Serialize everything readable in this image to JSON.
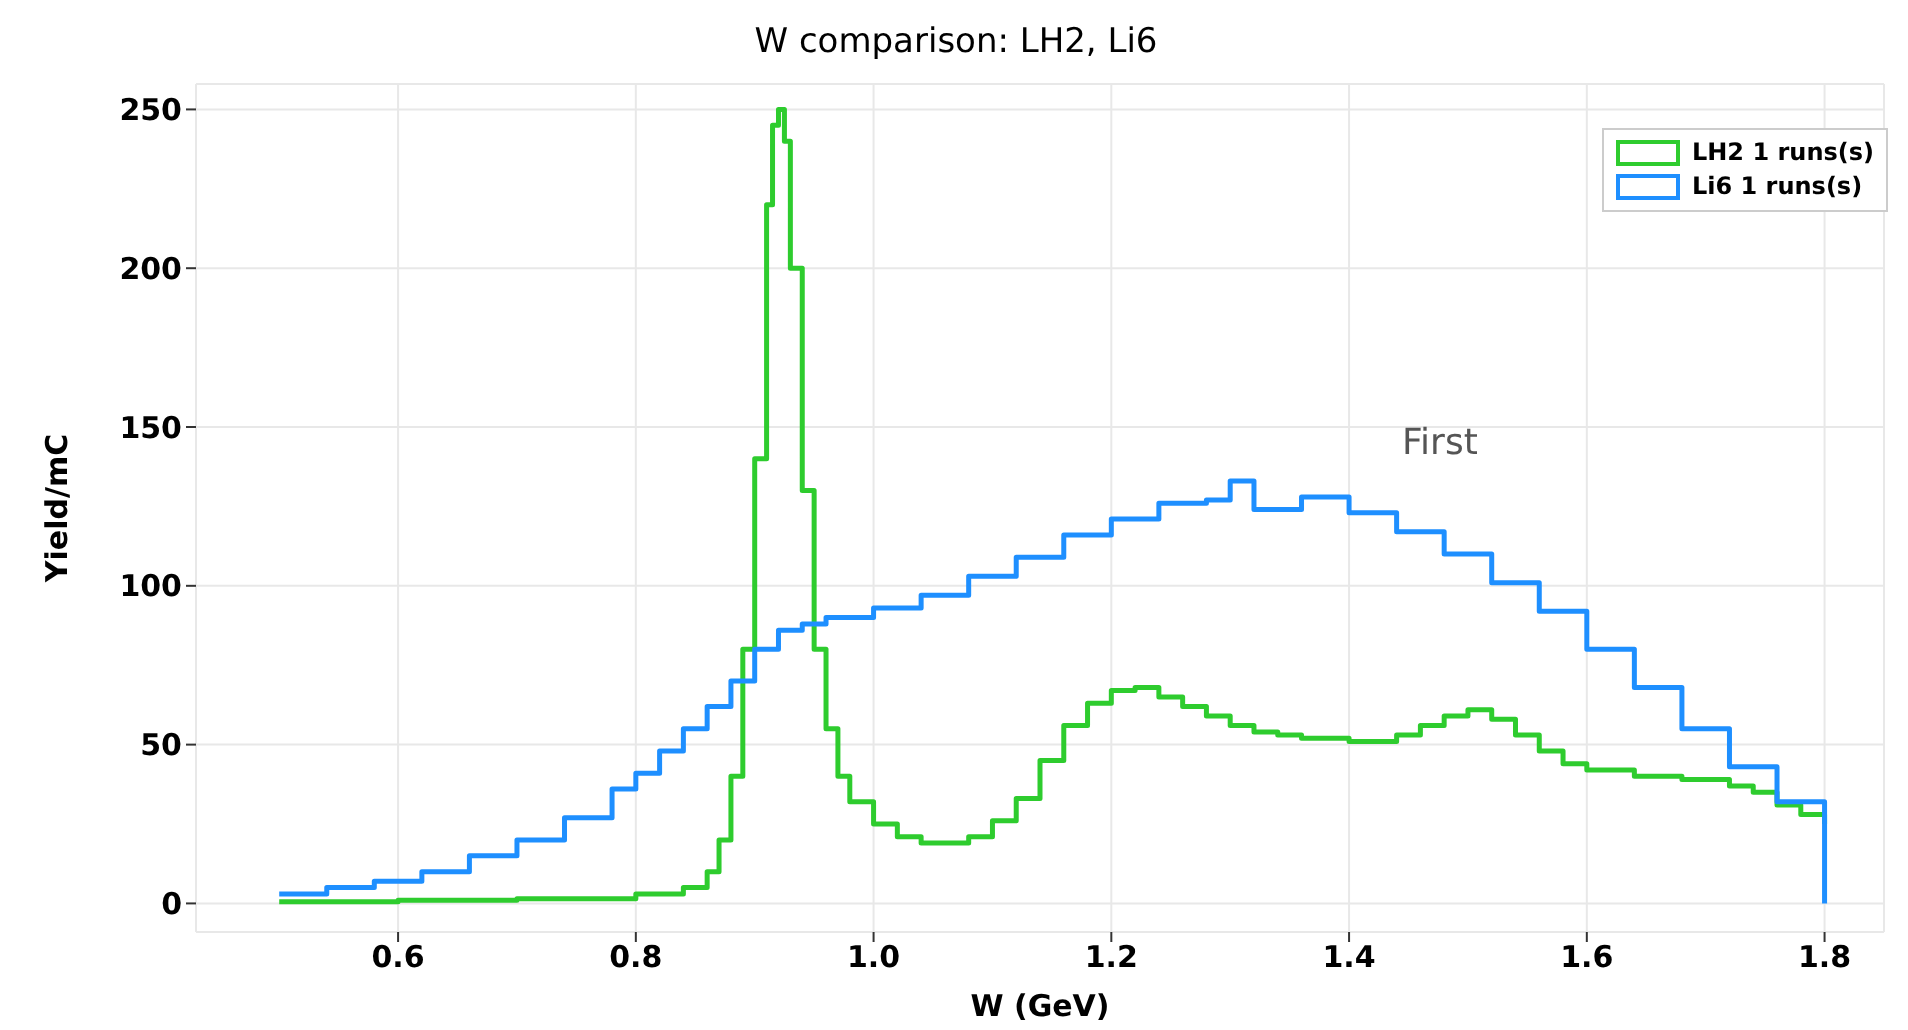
{
  "chart_data": {
    "type": "step",
    "title": "W comparison: LH2, Li6",
    "xlabel": "W (GeV)",
    "ylabel": "Yield/mC",
    "annotations": [
      "First"
    ],
    "xlim": [
      0.43,
      1.85
    ],
    "xticks": [
      {
        "value": 0.6,
        "label": "0.6"
      },
      {
        "value": 0.8,
        "label": "0.8"
      },
      {
        "value": 1,
        "label": "1.0"
      },
      {
        "value": 1.2,
        "label": "1.2"
      },
      {
        "value": 1.4,
        "label": "1.4"
      },
      {
        "value": 1.6,
        "label": "1.6"
      },
      {
        "value": 1.8,
        "label": "1.8"
      }
    ],
    "ylim": [
      -9,
      258
    ],
    "yticks": [
      0,
      50,
      100,
      150,
      200,
      250
    ],
    "grid": true,
    "legend": "top right",
    "series": [
      {
        "name": "LH2 1 runs(s)",
        "color": "#2ecc2e",
        "x": [
          0.5,
          0.6,
          0.7,
          0.8,
          0.84,
          0.86,
          0.87,
          0.88,
          0.89,
          0.9,
          0.91,
          0.915,
          0.92,
          0.925,
          0.93,
          0.94,
          0.95,
          0.96,
          0.97,
          0.98,
          1.0,
          1.02,
          1.04,
          1.06,
          1.08,
          1.1,
          1.12,
          1.14,
          1.16,
          1.18,
          1.2,
          1.22,
          1.24,
          1.26,
          1.28,
          1.3,
          1.32,
          1.34,
          1.36,
          1.4,
          1.42,
          1.44,
          1.46,
          1.48,
          1.5,
          1.52,
          1.54,
          1.56,
          1.58,
          1.6,
          1.64,
          1.68,
          1.72,
          1.74,
          1.76,
          1.78,
          1.8
        ],
        "values": [
          0.5,
          1,
          1.5,
          3,
          5,
          10,
          20,
          40,
          80,
          140,
          220,
          245,
          250,
          240,
          200,
          130,
          80,
          55,
          40,
          32,
          25,
          21,
          19,
          19,
          21,
          26,
          33,
          45,
          56,
          63,
          67,
          68,
          65,
          62,
          59,
          56,
          54,
          53,
          52,
          51,
          51,
          53,
          56,
          59,
          61,
          58,
          53,
          48,
          44,
          42,
          40,
          39,
          37,
          35,
          31,
          28,
          25
        ]
      },
      {
        "name": "Li6 1 runs(s)",
        "color": "#1e8fff",
        "x": [
          0.5,
          0.54,
          0.58,
          0.62,
          0.66,
          0.7,
          0.74,
          0.78,
          0.8,
          0.82,
          0.84,
          0.86,
          0.88,
          0.9,
          0.92,
          0.94,
          0.96,
          1.0,
          1.04,
          1.08,
          1.12,
          1.16,
          1.2,
          1.24,
          1.28,
          1.3,
          1.32,
          1.36,
          1.4,
          1.44,
          1.48,
          1.52,
          1.56,
          1.6,
          1.64,
          1.68,
          1.72,
          1.76,
          1.8,
          1.8
        ],
        "values": [
          3,
          5,
          7,
          10,
          15,
          20,
          27,
          36,
          41,
          48,
          55,
          62,
          70,
          80,
          86,
          88,
          90,
          93,
          97,
          103,
          109,
          116,
          121,
          126,
          127,
          133,
          124,
          128,
          123,
          117,
          110,
          101,
          92,
          80,
          68,
          55,
          43,
          32,
          25,
          0
        ]
      }
    ]
  }
}
